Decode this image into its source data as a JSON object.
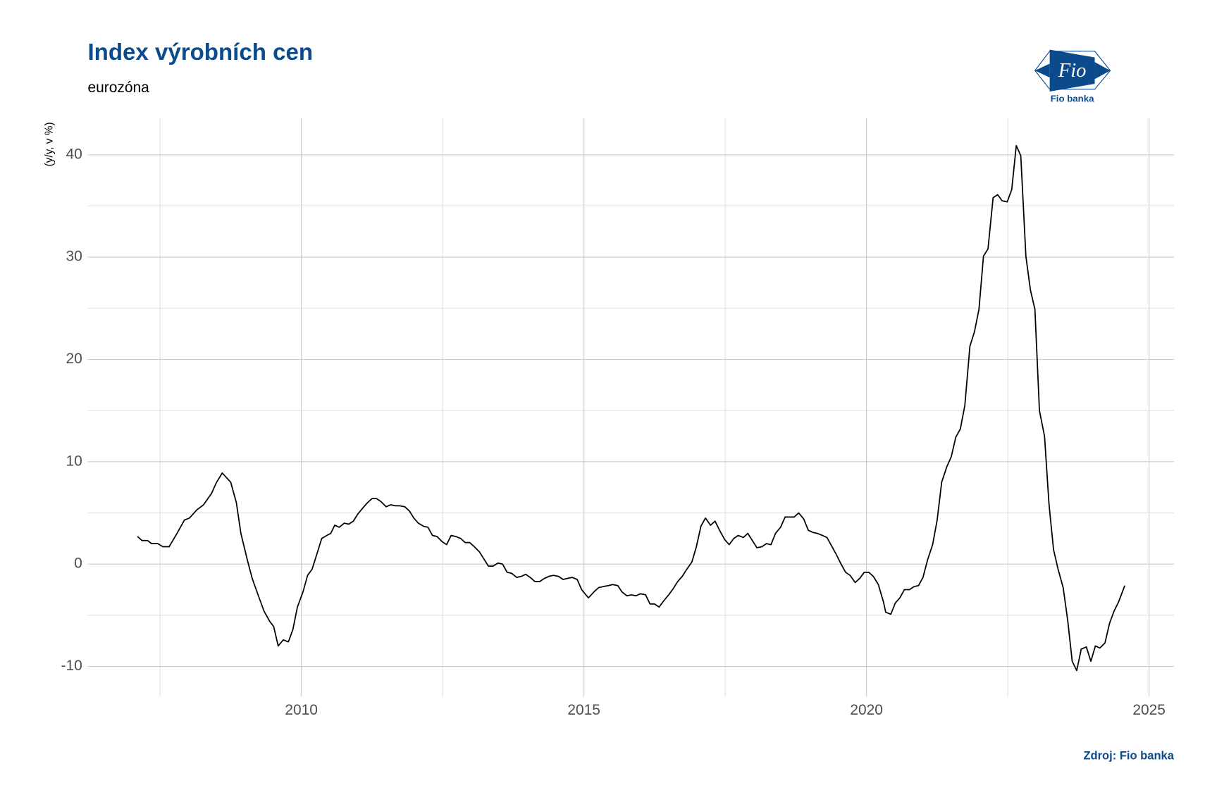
{
  "chart_data": {
    "type": "line",
    "title": "Index výrobních cen",
    "subtitle": "eurozóna",
    "y_label": "(y/y, v %)",
    "caption": "Zdroj: Fio banka",
    "xlim": [
      2006.22,
      2025.44
    ],
    "ylim": [
      -12.95,
      43.6
    ],
    "xticks": [
      2010,
      2015,
      2020,
      2025
    ],
    "yticks": [
      -10,
      0,
      10,
      20,
      30,
      40
    ],
    "xminorticks": [
      2007.5,
      2012.5,
      2017.5,
      2022.5
    ],
    "yminorticks": [
      -5,
      5,
      15,
      25,
      35
    ],
    "grid": true,
    "series": [
      {
        "name": "PPI",
        "color": "#000000",
        "x": [
          2007.1,
          2007.18,
          2007.28,
          2007.35,
          2007.46,
          2007.55,
          2007.66,
          2007.8,
          2007.93,
          2008.02,
          2008.15,
          2008.27,
          2008.41,
          2008.5,
          2008.6,
          2008.75,
          2008.85,
          2008.93,
          2009.04,
          2009.13,
          2009.24,
          2009.34,
          2009.44,
          2009.51,
          2009.59,
          2009.68,
          2009.77,
          2009.85,
          2009.93,
          2010.03,
          2010.11,
          2010.19,
          2010.27,
          2010.36,
          2010.45,
          2010.52,
          2010.59,
          2010.67,
          2010.76,
          2010.84,
          2010.92,
          2011.0,
          2011.09,
          2011.17,
          2011.25,
          2011.33,
          2011.41,
          2011.5,
          2011.58,
          2011.66,
          2011.74,
          2011.83,
          2011.91,
          2011.99,
          2012.07,
          2012.16,
          2012.24,
          2012.32,
          2012.4,
          2012.49,
          2012.57,
          2012.65,
          2012.73,
          2012.82,
          2012.9,
          2012.98,
          2013.06,
          2013.15,
          2013.23,
          2013.31,
          2013.39,
          2013.48,
          2013.56,
          2013.64,
          2013.72,
          2013.81,
          2013.89,
          2013.97,
          2014.05,
          2014.13,
          2014.22,
          2014.3,
          2014.38,
          2014.46,
          2014.55,
          2014.63,
          2014.71,
          2014.79,
          2014.88,
          2014.96,
          2015.08,
          2015.18,
          2015.26,
          2015.34,
          2015.43,
          2015.51,
          2015.6,
          2015.67,
          2015.76,
          2015.84,
          2015.92,
          2016.0,
          2016.09,
          2016.17,
          2016.25,
          2016.33,
          2016.41,
          2016.5,
          2016.58,
          2016.66,
          2016.74,
          2016.82,
          2016.91,
          2016.99,
          2017.07,
          2017.15,
          2017.24,
          2017.32,
          2017.4,
          2017.49,
          2017.57,
          2017.65,
          2017.73,
          2017.82,
          2017.9,
          2017.98,
          2018.06,
          2018.15,
          2018.23,
          2018.31,
          2018.39,
          2018.48,
          2018.56,
          2018.64,
          2018.72,
          2018.8,
          2018.89,
          2018.97,
          2019.05,
          2019.13,
          2019.22,
          2019.3,
          2019.38,
          2019.46,
          2019.55,
          2019.63,
          2019.71,
          2019.8,
          2019.88,
          2019.96,
          2020.04,
          2020.12,
          2020.21,
          2020.3,
          2020.34,
          2020.43,
          2020.51,
          2020.59,
          2020.67,
          2020.76,
          2020.84,
          2020.92,
          2021.0,
          2021.08,
          2021.17,
          2021.25,
          2021.33,
          2021.42,
          2021.5,
          2021.58,
          2021.66,
          2021.74,
          2021.83,
          2021.91,
          2021.99,
          2022.07,
          2022.15,
          2022.24,
          2022.32,
          2022.4,
          2022.49,
          2022.57,
          2022.65,
          2022.73,
          2022.82,
          2022.9,
          2022.98,
          2023.06,
          2023.15,
          2023.23,
          2023.31,
          2023.39,
          2023.48,
          2023.56,
          2023.64,
          2023.72,
          2023.8,
          2023.89,
          2023.97,
          2024.05,
          2024.13,
          2024.22,
          2024.3,
          2024.38,
          2024.46,
          2024.57
        ],
        "values": [
          2.7,
          2.3,
          2.3,
          2.0,
          2.0,
          1.7,
          1.7,
          3.0,
          4.3,
          4.5,
          5.3,
          5.8,
          6.9,
          8.0,
          8.9,
          8.0,
          6.0,
          3.0,
          0.5,
          -1.4,
          -3.1,
          -4.6,
          -5.6,
          -6.1,
          -8.0,
          -7.4,
          -7.6,
          -6.4,
          -4.2,
          -2.7,
          -1.1,
          -0.5,
          0.9,
          2.5,
          2.8,
          3.0,
          3.8,
          3.6,
          4.0,
          3.9,
          4.2,
          4.9,
          5.5,
          6.0,
          6.4,
          6.4,
          6.1,
          5.6,
          5.8,
          5.7,
          5.7,
          5.6,
          5.2,
          4.5,
          4.0,
          3.7,
          3.6,
          2.8,
          2.7,
          2.2,
          1.9,
          2.8,
          2.7,
          2.5,
          2.1,
          2.1,
          1.7,
          1.2,
          0.5,
          -0.2,
          -0.2,
          0.1,
          0,
          -0.8,
          -0.9,
          -1.3,
          -1.2,
          -1.0,
          -1.3,
          -1.7,
          -1.7,
          -1.4,
          -1.2,
          -1.1,
          -1.2,
          -1.5,
          -1.4,
          -1.3,
          -1.5,
          -2.5,
          -3.3,
          -2.7,
          -2.3,
          -2.2,
          -2.1,
          -2.0,
          -2.1,
          -2.7,
          -3.1,
          -3.0,
          -3.1,
          -2.9,
          -3.0,
          -3.9,
          -3.9,
          -4.2,
          -3.6,
          -3.0,
          -2.4,
          -1.7,
          -1.2,
          -0.5,
          0.2,
          1.7,
          3.7,
          4.5,
          3.8,
          4.2,
          3.3,
          2.4,
          1.9,
          2.5,
          2.8,
          2.6,
          3.0,
          2.3,
          1.6,
          1.7,
          2.0,
          1.9,
          3.0,
          3.6,
          4.6,
          4.6,
          4.6,
          5.0,
          4.4,
          3.3,
          3.1,
          3.0,
          2.8,
          2.6,
          1.8,
          1.0,
          0,
          -0.8,
          -1.1,
          -1.8,
          -1.4,
          -0.8,
          -0.8,
          -1.2,
          -2.0,
          -3.7,
          -4.7,
          -4.9,
          -3.8,
          -3.3,
          -2.5,
          -2.5,
          -2.2,
          -2.1,
          -1.3,
          0.4,
          1.9,
          4.3,
          8.0,
          9.5,
          10.5,
          12.4,
          13.2,
          15.5,
          21.3,
          22.7,
          24.9,
          30.1,
          30.8,
          35.8,
          36.1,
          35.5,
          35.4,
          36.6,
          40.9,
          39.9,
          30.1,
          26.8,
          24.9,
          15.0,
          12.5,
          5.8,
          1.4,
          -0.5,
          -2.3,
          -5.5,
          -9.5,
          -10.4,
          -8.3,
          -8.1,
          -9.5,
          -8.0,
          -8.2,
          -7.7,
          -5.8,
          -4.6,
          -3.7,
          -2.1
        ]
      }
    ]
  },
  "logo": {
    "mark": "Fio",
    "name": "Fio banka"
  }
}
